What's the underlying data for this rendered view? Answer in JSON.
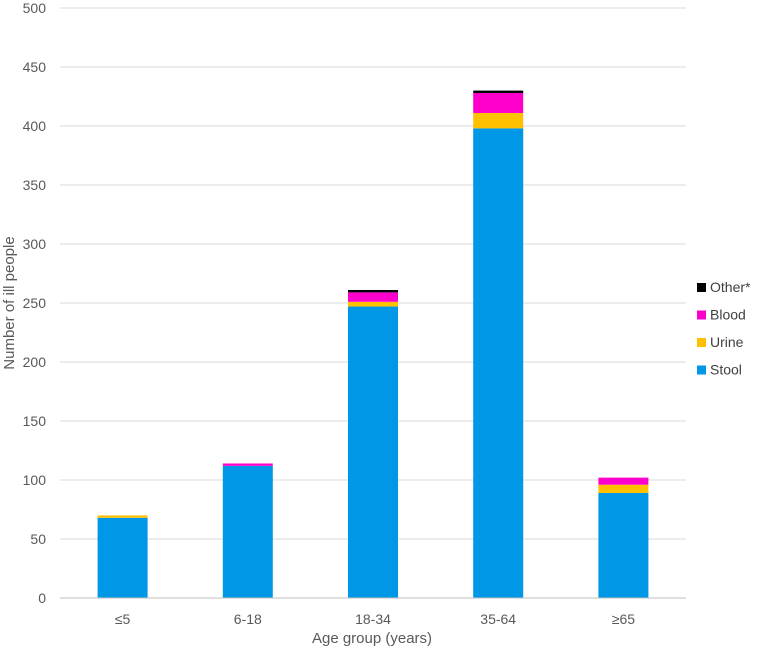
{
  "chart_data": {
    "type": "bar",
    "stacked": true,
    "title": "",
    "xlabel": "Age group (years)",
    "ylabel": "Number of ill people",
    "categories": [
      "≤5",
      "6-18",
      "18-34",
      "35-64",
      "≥65"
    ],
    "ylim": [
      0,
      500
    ],
    "yticks": [
      0,
      50,
      100,
      150,
      200,
      250,
      300,
      350,
      400,
      450,
      500
    ],
    "grid": true,
    "legend_position": "right",
    "series": [
      {
        "name": "Stool",
        "color": "#0097e6",
        "values": [
          68,
          112,
          247,
          398,
          89
        ]
      },
      {
        "name": "Urine",
        "color": "#ffc000",
        "values": [
          2,
          0,
          4,
          13,
          7
        ]
      },
      {
        "name": "Blood",
        "color": "#ff00cc",
        "values": [
          0,
          2,
          8,
          17,
          6
        ]
      },
      {
        "name": "Other*",
        "color": "#000000",
        "values": [
          0,
          0,
          2,
          2,
          0
        ]
      }
    ]
  }
}
